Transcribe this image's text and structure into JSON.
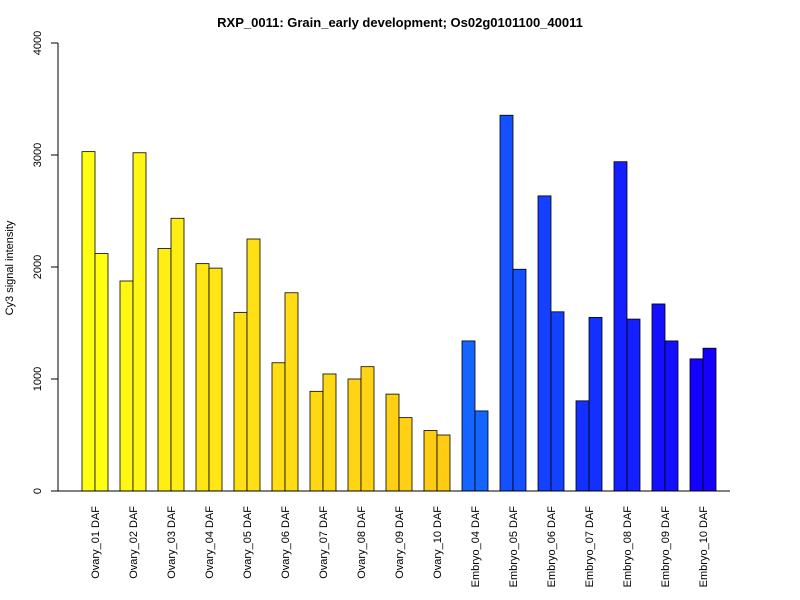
{
  "chart_data": {
    "type": "bar",
    "title": "RXP_0011: Grain_early development; Os02g0101100_40011",
    "xlabel": "",
    "ylabel": "Cy3 signal intensity",
    "ylim": [
      0,
      4000
    ],
    "yticks": [
      "0",
      "1000",
      "2000",
      "3000",
      "4000"
    ],
    "grid": false,
    "legend": "none",
    "categories": [
      "Ovary_01 DAF",
      "Ovary_02 DAF",
      "Ovary_03 DAF",
      "Ovary_04 DAF",
      "Ovary_05 DAF",
      "Ovary_06 DAF",
      "Ovary_07 DAF",
      "Ovary_08 DAF",
      "Ovary_09 DAF",
      "Ovary_10 DAF",
      "Embryo_04 DAF",
      "Embryo_05 DAF",
      "Embryo_06 DAF",
      "Embryo_07 DAF",
      "Embryo_08 DAF",
      "Embryo_09 DAF",
      "Embryo_10 DAF"
    ],
    "series": [
      {
        "values": [
          3030,
          1875,
          2165,
          2030,
          1595,
          1145,
          890,
          1000,
          865,
          540,
          1340,
          3355,
          2635,
          805,
          2940,
          1670,
          1180
        ]
      },
      {
        "values": [
          2120,
          3020,
          2435,
          1990,
          2250,
          1770,
          1045,
          1110,
          655,
          500,
          715,
          1980,
          1600,
          1550,
          1535,
          1340,
          1275
        ]
      }
    ],
    "colors": [
      "#FFFF14",
      "#FFF614",
      "#FFEE14",
      "#FFE614",
      "#FFE014",
      "#FFDC14",
      "#FFD814",
      "#FFD414",
      "#FFD014",
      "#FFCC14",
      "#1464FF",
      "#1450FF",
      "#1440FF",
      "#1430FF",
      "#1420FF",
      "#1410FF",
      "#1400FF"
    ]
  }
}
